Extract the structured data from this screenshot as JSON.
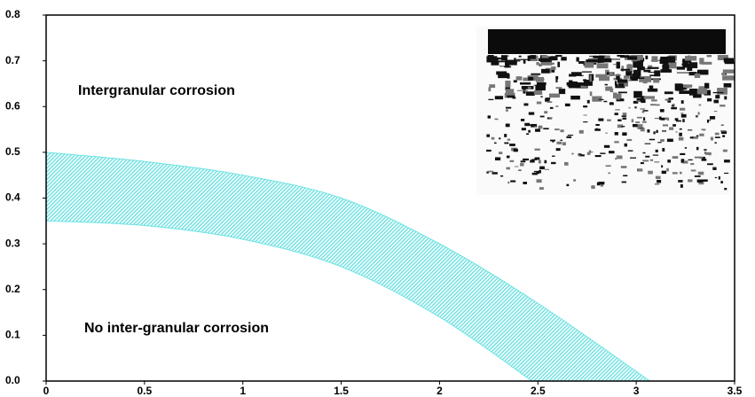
{
  "chart_data": {
    "type": "band",
    "annotations": [
      "Intergranular corrosion",
      "No inter-granular corrosion"
    ],
    "x_upper": [
      0,
      0.5,
      1,
      1.5,
      2,
      2.5,
      3.07
    ],
    "upper": [
      0.5,
      0.48,
      0.45,
      0.4,
      0.3,
      0.17,
      0
    ],
    "x_lower": [
      0,
      0.5,
      1,
      1.5,
      2,
      2.47
    ],
    "lower": [
      0.35,
      0.34,
      0.31,
      0.25,
      0.14,
      0
    ],
    "color": "#6fe3e3",
    "xlim": [
      0,
      3.5
    ],
    "xticks": [
      0,
      0.5,
      1,
      1.5,
      2,
      2.5,
      3,
      3.5
    ],
    "ylim": [
      0,
      0.8
    ],
    "yticks": [
      {
        "value": 0,
        "label": "0.0"
      },
      0.1,
      0.2,
      0.3,
      0.4,
      0.5,
      0.6,
      0.7,
      0.8
    ]
  }
}
